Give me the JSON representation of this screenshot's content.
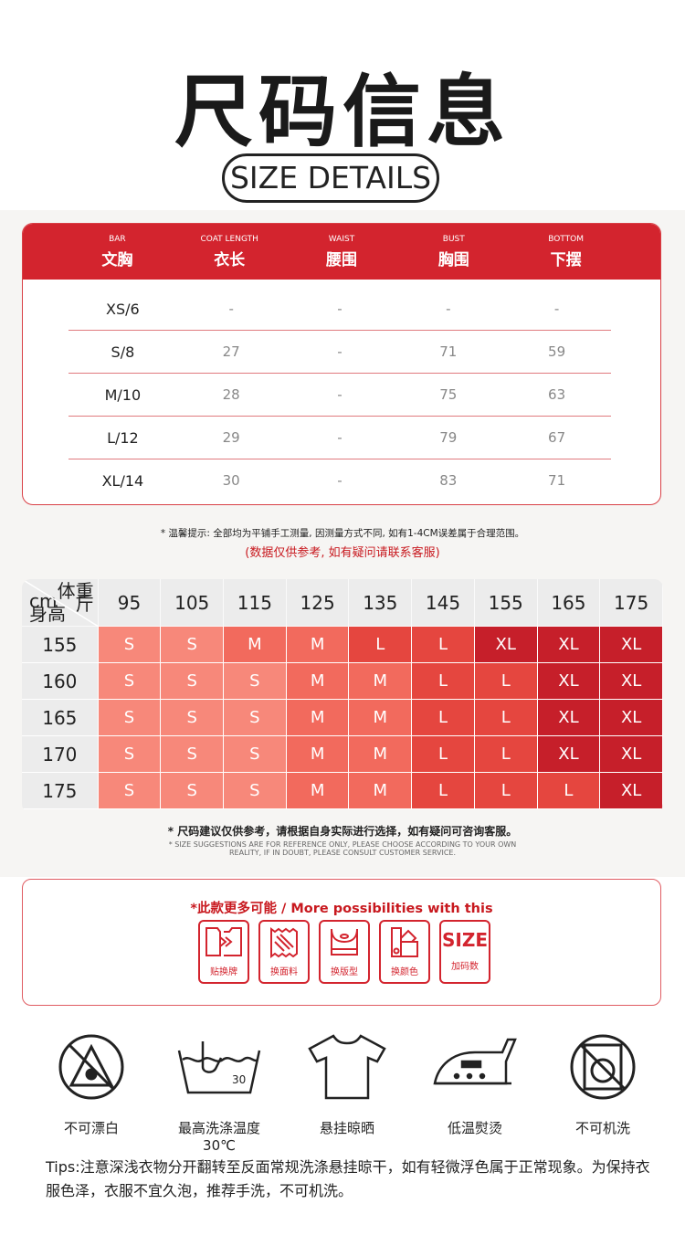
{
  "header": {
    "title": "尺码信息",
    "subtitle": "SIZE DETAILS"
  },
  "size_table": {
    "columns": [
      {
        "en": "BAR",
        "zh": "文胸"
      },
      {
        "en": "COAT LENGTH",
        "zh": "衣长"
      },
      {
        "en": "WAIST",
        "zh": "腰围"
      },
      {
        "en": "BUST",
        "zh": "胸围"
      },
      {
        "en": "BOTTOM",
        "zh": "下摆"
      }
    ],
    "rows": [
      [
        "XS/6",
        "-",
        "-",
        "-",
        "-"
      ],
      [
        "S/8",
        "27",
        "-",
        "71",
        "59"
      ],
      [
        "M/10",
        "28",
        "-",
        "75",
        "63"
      ],
      [
        "L/12",
        "29",
        "-",
        "79",
        "67"
      ],
      [
        "XL/14",
        "30",
        "-",
        "83",
        "71"
      ]
    ]
  },
  "notes": {
    "measure": "* 温馨提示: 全部均为平铺手工测量, 因测量方式不同, 如有1-4CM误差属于合理范围。",
    "reference": "(数据仅供参考, 如有疑问请联系客服)"
  },
  "size_grid": {
    "corner_weight": "体重\n斤",
    "corner_height": "cm\n身高",
    "weights": [
      "95",
      "105",
      "115",
      "125",
      "135",
      "145",
      "155",
      "165",
      "175"
    ],
    "rows": [
      {
        "height": "155",
        "sizes": [
          "S",
          "S",
          "M",
          "M",
          "L",
          "L",
          "XL",
          "XL",
          "XL"
        ]
      },
      {
        "height": "160",
        "sizes": [
          "S",
          "S",
          "S",
          "M",
          "M",
          "L",
          "L",
          "XL",
          "XL"
        ]
      },
      {
        "height": "165",
        "sizes": [
          "S",
          "S",
          "S",
          "M",
          "M",
          "L",
          "L",
          "XL",
          "XL"
        ]
      },
      {
        "height": "170",
        "sizes": [
          "S",
          "S",
          "S",
          "M",
          "M",
          "L",
          "L",
          "XL",
          "XL"
        ]
      },
      {
        "height": "175",
        "sizes": [
          "S",
          "S",
          "S",
          "M",
          "M",
          "L",
          "L",
          "L",
          "XL"
        ]
      }
    ],
    "colors": {
      "S": "#f7887a",
      "M": "#f26a5d",
      "L": "#e5463f",
      "XL": "#c61f2a"
    },
    "note_zh": "* 尺码建议仅供参考，请根据自身实际进行选择，如有疑问可咨询客服。",
    "note_en": "* SIZE SUGGESTIONS ARE FOR REFERENCE ONLY, PLEASE CHOOSE ACCORDING TO YOUR OWN REALITY, IF IN DOUBT, PLEASE CONSULT CUSTOMER SERVICE."
  },
  "more": {
    "title": "*此款更多可能 / More possibilities with this",
    "items": [
      {
        "icon": "label-swap-icon",
        "label": "贴换牌"
      },
      {
        "icon": "fabric-icon",
        "label": "换面料"
      },
      {
        "icon": "bra-style-icon",
        "label": "换版型"
      },
      {
        "icon": "color-swatch-icon",
        "label": "换颜色"
      },
      {
        "icon": "size-text-icon",
        "text": "SIZE",
        "label": "加码数"
      }
    ]
  },
  "care": [
    {
      "icon": "no-bleach-icon",
      "label": "不可漂白"
    },
    {
      "icon": "wash-30-icon",
      "label": "最高洗涤温度30℃"
    },
    {
      "icon": "hang-dry-icon",
      "label": "悬挂晾晒"
    },
    {
      "icon": "low-iron-icon",
      "label": "低温熨烫"
    },
    {
      "icon": "no-machine-wash-icon",
      "label": "不可机洗"
    }
  ],
  "tips": "Tips:注意深浅衣物分开翻转至反面常规洗涤悬挂晾干，如有轻微浮色属于正常现象。为保持衣服色泽，衣服不宜久泡，推荐手洗，不可机洗。",
  "accent": "#d3242e"
}
